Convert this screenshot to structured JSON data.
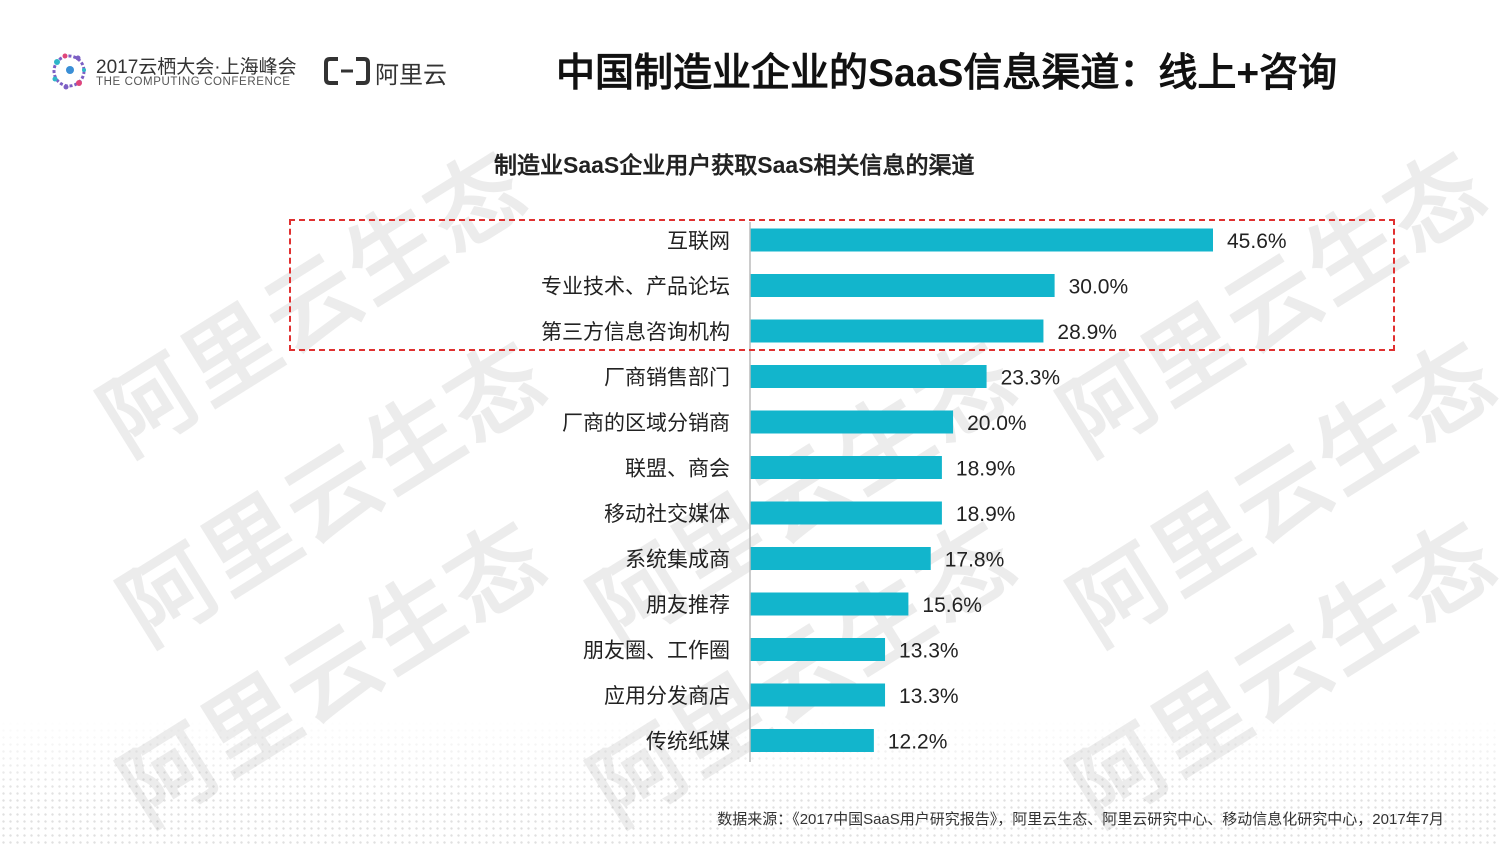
{
  "header": {
    "conference_title": "2017云栖大会·上海峰会",
    "conference_subtitle": "THE COMPUTING CONFERENCE",
    "brand_text": "阿里云",
    "page_title": "中国制造业企业的SaaS信息渠道：线上+咨询"
  },
  "watermark_text": "阿里云生态",
  "colors": {
    "bar": "#12b5cc",
    "highlight_border": "#e03030",
    "axis": "#bbbbbb"
  },
  "chart_data": {
    "type": "bar",
    "orientation": "horizontal",
    "title": "制造业SaaS企业用户获取SaaS相关信息的渠道",
    "categories": [
      "互联网",
      "专业技术、产品论坛",
      "第三方信息咨询机构",
      "厂商销售部门",
      "厂商的区域分销商",
      "联盟、商会",
      "移动社交媒体",
      "系统集成商",
      "朋友推荐",
      "朋友圈、工作圈",
      "应用分发商店",
      "传统纸媒"
    ],
    "values": [
      45.6,
      30.0,
      28.9,
      23.3,
      20.0,
      18.9,
      18.9,
      17.8,
      15.6,
      13.3,
      13.3,
      12.2
    ],
    "data_labels": [
      "45.6%",
      "30.0%",
      "28.9%",
      "23.3%",
      "20.0%",
      "18.9%",
      "18.9%",
      "17.8%",
      "15.6%",
      "13.3%",
      "13.3%",
      "12.2%"
    ],
    "value_unit": "%",
    "xlim": [
      0,
      50
    ],
    "highlighted_categories": [
      "互联网",
      "专业技术、产品论坛",
      "第三方信息咨询机构"
    ]
  },
  "source_note": "数据来源：《2017中国SaaS用户研究报告》，阿里云生态、阿里云研究中心、移动信息化研究中心，2017年7月"
}
